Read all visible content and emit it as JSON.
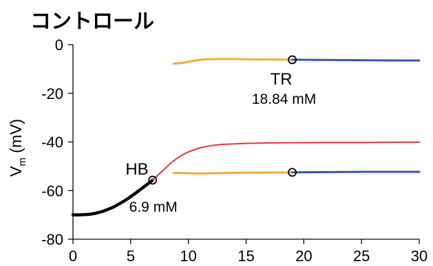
{
  "chart_data": {
    "type": "line",
    "title": "コントロール",
    "ylabel": {
      "main": "V",
      "sub": "m",
      "unit": " (mV)"
    },
    "xlabel": "",
    "xlim": [
      0,
      30
    ],
    "ylim": [
      -80,
      0
    ],
    "xticks": [
      "0",
      "5",
      "10",
      "15",
      "20",
      "25",
      "30"
    ],
    "yticks": [
      "0",
      "-20",
      "-40",
      "-60",
      "-80"
    ],
    "grid": false,
    "legend": "none",
    "series": [
      {
        "color": "#000000",
        "width": 4.5,
        "points": [
          [
            0,
            -70
          ],
          [
            0.5,
            -70
          ],
          [
            1,
            -69.9
          ],
          [
            1.5,
            -69.7
          ],
          [
            2,
            -69.3
          ],
          [
            2.5,
            -68.7
          ],
          [
            3,
            -67.8
          ],
          [
            3.5,
            -66.8
          ],
          [
            4,
            -65.5
          ],
          [
            4.5,
            -64.1
          ],
          [
            5,
            -62.5
          ],
          [
            5.5,
            -60.8
          ],
          [
            6,
            -59
          ],
          [
            6.5,
            -57.2
          ],
          [
            6.9,
            -55.7
          ]
        ]
      },
      {
        "color": "#e8333a",
        "width": 2,
        "points": [
          [
            6.9,
            -55.7
          ],
          [
            7.5,
            -53
          ],
          [
            8,
            -50.8
          ],
          [
            8.5,
            -48.6
          ],
          [
            9,
            -46.8
          ],
          [
            9.5,
            -45.3
          ],
          [
            10,
            -44.1
          ],
          [
            11,
            -42.4
          ],
          [
            12,
            -41.5
          ],
          [
            13,
            -41
          ],
          [
            15,
            -40.6
          ],
          [
            17,
            -40.4
          ],
          [
            19,
            -40.3
          ],
          [
            22,
            -40.2
          ],
          [
            25,
            -40.2
          ],
          [
            28,
            -40.1
          ],
          [
            30,
            -40.1
          ]
        ]
      },
      {
        "color": "#f5a93a",
        "width": 3,
        "points": [
          [
            8.7,
            -52.7
          ],
          [
            10,
            -52.9
          ],
          [
            11,
            -53
          ],
          [
            12,
            -52.9
          ],
          [
            14,
            -52.7
          ],
          [
            16,
            -52.6
          ],
          [
            19,
            -52.5
          ]
        ]
      },
      {
        "color": "#2f57b6",
        "width": 3,
        "points": [
          [
            19,
            -52.5
          ],
          [
            22,
            -52.4
          ],
          [
            25,
            -52.3
          ],
          [
            28,
            -52.3
          ],
          [
            30,
            -52.3
          ]
        ]
      },
      {
        "color": "#f5a93a",
        "width": 3,
        "points": [
          [
            8.7,
            -7.8
          ],
          [
            9.5,
            -7.5
          ],
          [
            10.5,
            -6.6
          ],
          [
            11.5,
            -6
          ],
          [
            12.5,
            -5.9
          ],
          [
            14,
            -5.9
          ],
          [
            16,
            -6.1
          ],
          [
            19,
            -6.2
          ]
        ]
      },
      {
        "color": "#2f57b6",
        "width": 3,
        "points": [
          [
            19,
            -6.2
          ],
          [
            22,
            -6.3
          ],
          [
            25,
            -6.4
          ],
          [
            28,
            -6.5
          ],
          [
            30,
            -6.5
          ]
        ]
      }
    ],
    "markers": [
      [
        6.9,
        -55.7
      ],
      [
        19,
        -52.5
      ],
      [
        19,
        -6.2
      ]
    ],
    "annotations": [
      {
        "key": "hb",
        "text": "HB",
        "x": 6.9,
        "y": -55.7,
        "anchor": "end",
        "size": "large"
      },
      {
        "key": "hb-value",
        "text": "6.9 mM",
        "x": 6.9,
        "y": -55.7,
        "anchor": "middle",
        "size": "small"
      },
      {
        "key": "tr",
        "text": "TR",
        "x": 19,
        "y": -6.2,
        "anchor": "middle",
        "size": "large"
      },
      {
        "key": "tr-value",
        "text": "18.84 mM",
        "x": 19,
        "y": -6.2,
        "anchor": "middle",
        "size": "small"
      }
    ]
  }
}
